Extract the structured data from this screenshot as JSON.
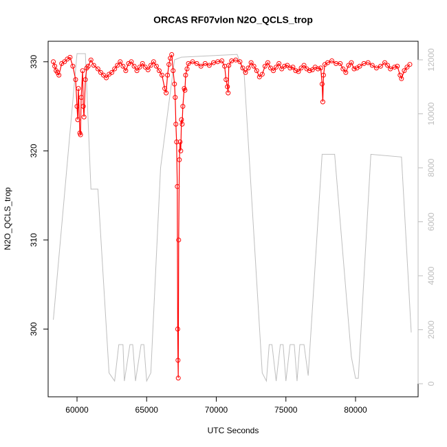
{
  "chart_data": {
    "type": "line",
    "title": "ORCAS RF07vlon N2O_QCLS_trop",
    "xlabel": "UTC Seconds",
    "ylabel": "N2O_QCLS_trop",
    "xlim": [
      57926,
      84494
    ],
    "xticks": [
      60000,
      65000,
      70000,
      75000,
      80000
    ],
    "ylim": [
      292.4,
      332.3
    ],
    "yticks": [
      300,
      310,
      320,
      330
    ],
    "y2lim": [
      -484,
      12688
    ],
    "y2ticks": [
      0,
      2000,
      4000,
      6000,
      8000,
      10000,
      12000
    ],
    "series": [
      {
        "color": "#bebebe",
        "axis": "y2",
        "x": [
          58300,
          60000,
          60600,
          61000,
          61500,
          62300,
          62700,
          63000,
          63300,
          63400,
          63800,
          64000,
          64200,
          64600,
          64800,
          65000,
          65300,
          66000,
          67000,
          67500,
          71500,
          72000,
          73300,
          73600,
          73800,
          74000,
          74300,
          74600,
          74800,
          75000,
          75300,
          75600,
          75800,
          76000,
          76300,
          76600,
          77600,
          78500,
          79700,
          80000,
          80200,
          81100,
          83300,
          84000
        ],
        "values": [
          2370,
          12230,
          12230,
          7210,
          7210,
          400,
          100,
          1450,
          1450,
          100,
          1450,
          1450,
          100,
          1450,
          1450,
          100,
          400,
          8000,
          12000,
          12100,
          12200,
          11500,
          400,
          100,
          1450,
          1450,
          100,
          1450,
          1450,
          100,
          1450,
          1450,
          100,
          1450,
          1450,
          300,
          8500,
          8500,
          1000,
          200,
          200,
          8500,
          8400,
          1900
        ]
      },
      {
        "color": "#ff0000",
        "x": [
          58300,
          58400,
          58500,
          58600,
          58700,
          58900,
          59100,
          59300,
          59500,
          59700,
          59900,
          60000,
          60050,
          60100,
          60200,
          60250,
          60300,
          60400,
          60450,
          60500,
          60600,
          60700,
          60800,
          61000,
          61200,
          61500,
          61700,
          61900,
          62100,
          62300,
          62500,
          62700,
          62900,
          63100,
          63300,
          63500,
          63700,
          63900,
          64100,
          64300,
          64500,
          64700,
          64900,
          65100,
          65300,
          65500,
          65700,
          65900,
          66100,
          66300,
          66400,
          66500,
          66600,
          66700,
          66800,
          66900,
          67000,
          67050,
          67100,
          67150,
          67200,
          67230,
          67250,
          67270,
          67300,
          67350,
          67400,
          67450,
          67500,
          67550,
          67600,
          67700,
          67750,
          67800,
          67900,
          68000,
          68300,
          68600,
          68900,
          69200,
          69500,
          69800,
          70100,
          70400,
          70600,
          70700,
          70800,
          70850,
          70900,
          71100,
          71400,
          71700,
          71900,
          72100,
          72300,
          72500,
          72700,
          72900,
          73100,
          73300,
          73500,
          73700,
          73900,
          74100,
          74300,
          74500,
          74700,
          74900,
          75100,
          75300,
          75500,
          75700,
          75900,
          76100,
          76300,
          76500,
          76700,
          76900,
          77100,
          77300,
          77500,
          77600,
          77650,
          77700,
          77800,
          78000,
          78300,
          78600,
          78900,
          79100,
          79300,
          79500,
          79700,
          79900,
          80100,
          80300,
          80600,
          80900,
          81200,
          81500,
          81800,
          82100,
          82300,
          82500,
          82800,
          83000,
          83200,
          83300,
          83500,
          83700,
          83900
        ],
        "values": [
          330,
          329.5,
          329,
          328.8,
          328.5,
          329.8,
          330,
          330.3,
          330.5,
          329.5,
          328,
          325,
          323.5,
          327,
          322,
          321.8,
          326,
          329,
          325,
          323.8,
          328,
          329.3,
          329.5,
          330.2,
          329.6,
          329.2,
          328.8,
          328.5,
          328.2,
          328.6,
          328.8,
          329.2,
          329.6,
          330,
          329.5,
          329,
          329.8,
          330,
          329.5,
          329,
          329.4,
          329.8,
          329.4,
          329.1,
          329.6,
          330,
          329.5,
          329,
          328.5,
          327,
          326.5,
          328.5,
          329.7,
          330.4,
          330.8,
          329,
          327.5,
          326,
          323,
          321,
          316,
          300,
          296.5,
          294.5,
          310,
          319,
          321,
          320,
          323.5,
          323,
          325,
          327,
          326.8,
          328.5,
          329.2,
          329.8,
          330,
          329.8,
          329.5,
          329.8,
          329.6,
          329.9,
          330,
          330.1,
          329.5,
          328,
          327.2,
          326.5,
          329.6,
          330.1,
          330.2,
          330,
          329.3,
          328.8,
          329.3,
          329.9,
          329.5,
          329,
          328.3,
          328.6,
          329.5,
          329.9,
          329.3,
          329,
          329.4,
          329.8,
          329.2,
          329.5,
          329.6,
          329.3,
          329.4,
          329,
          328.9,
          329.3,
          329.6,
          329.2,
          329,
          329.1,
          329.4,
          329.2,
          329.3,
          327.5,
          325.5,
          328.5,
          329.7,
          329.9,
          330.1,
          329.8,
          329.8,
          329.2,
          328.8,
          329.6,
          329.9,
          329.2,
          329.3,
          329.5,
          329.8,
          329.9,
          329.6,
          329.3,
          329.5,
          329.9,
          329.6,
          329.2,
          329.4,
          329.5,
          328.5,
          328.1,
          329,
          329.4,
          329.7
        ]
      }
    ]
  }
}
